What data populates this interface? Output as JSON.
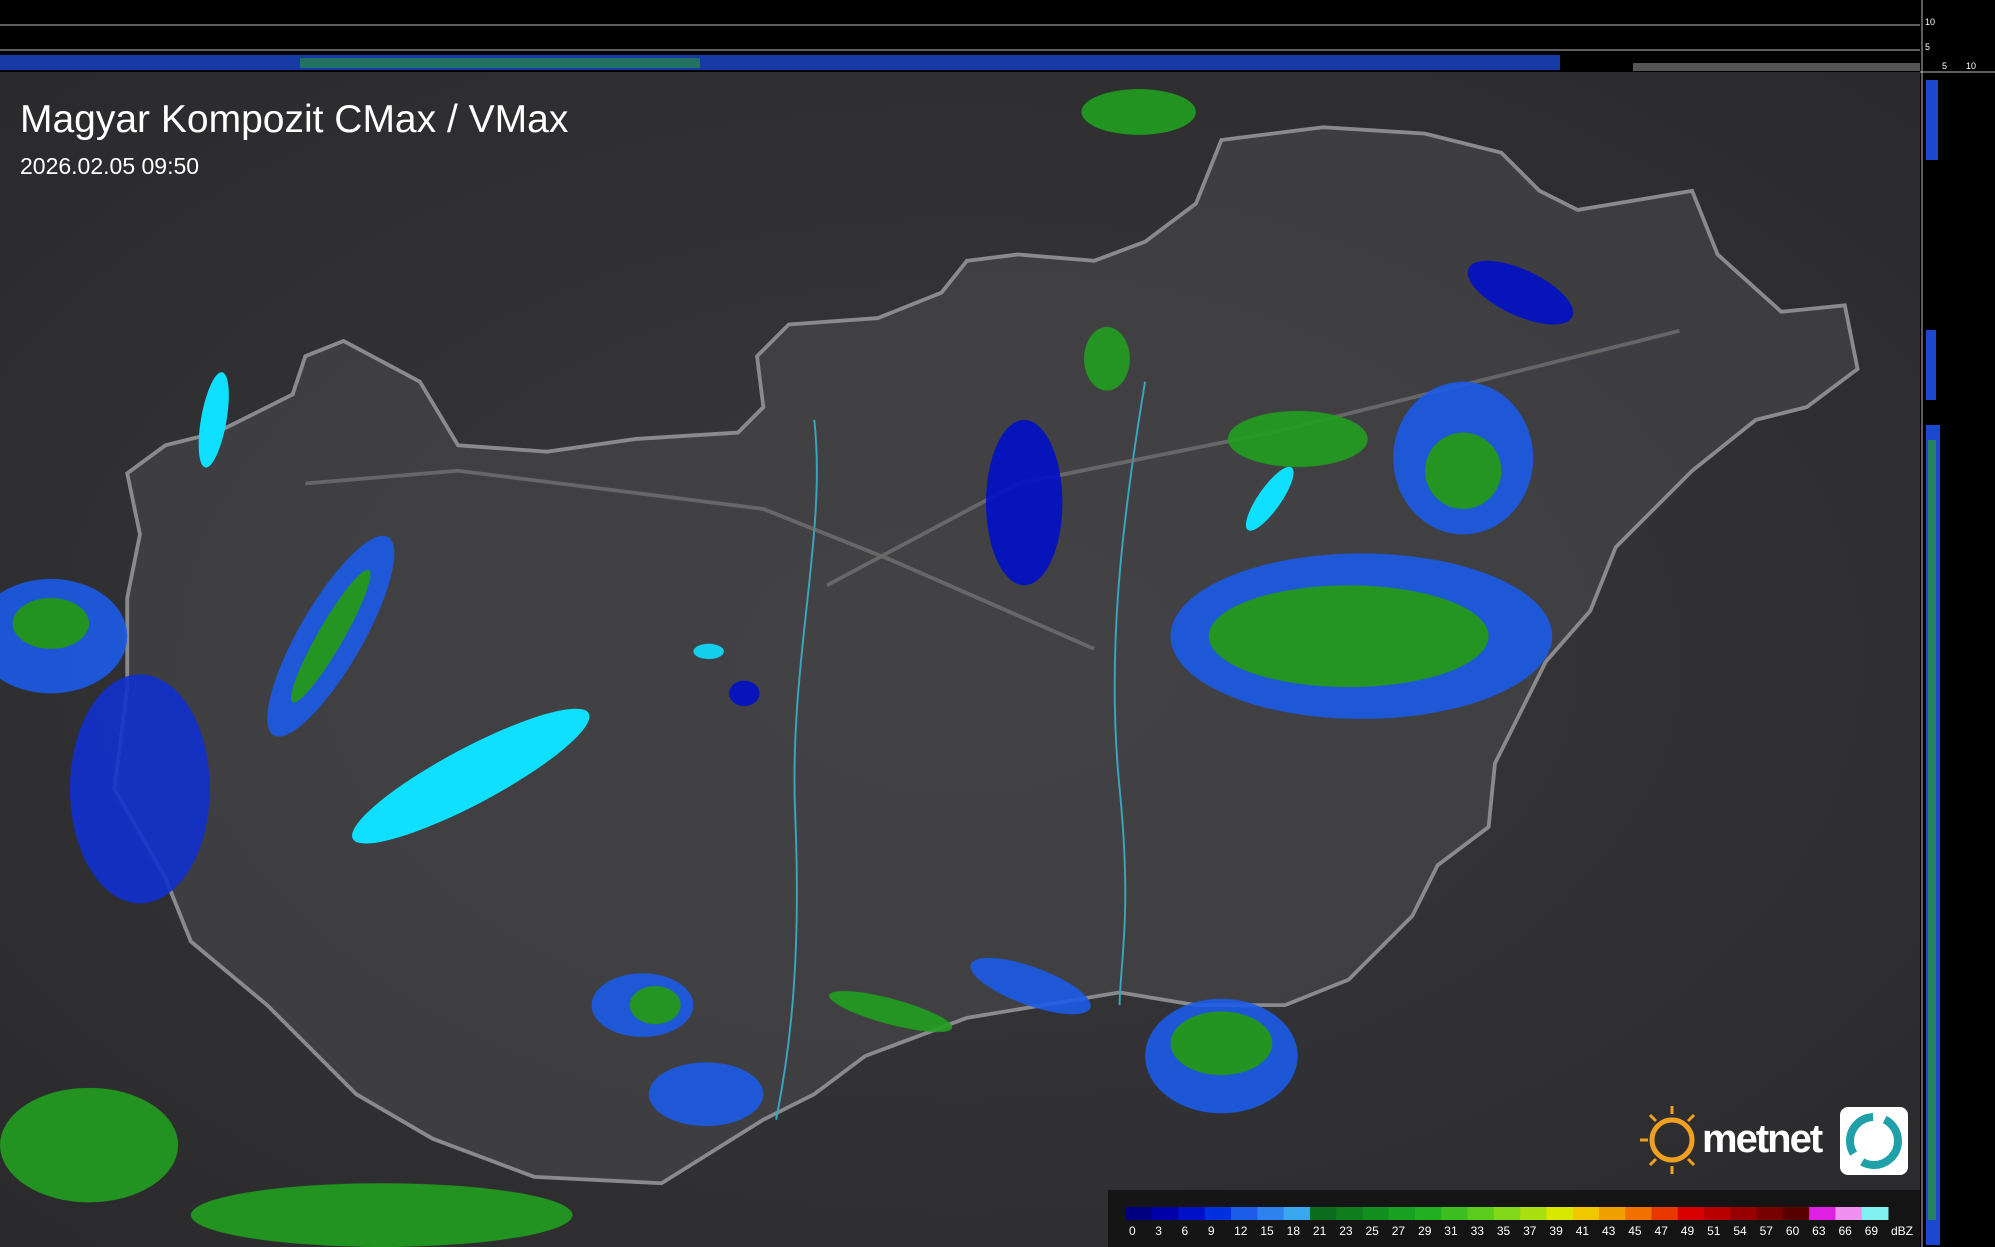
{
  "header": {
    "title": "Magyar Kompozit CMax / VMax",
    "timestamp": "2026.02.05 09:50"
  },
  "side_axis": {
    "top_labels": [
      "10",
      "5"
    ],
    "bottom_labels": [
      "5",
      "10"
    ]
  },
  "logo": {
    "text": "metnet"
  },
  "legend": {
    "unit": "dBZ",
    "levels": [
      0,
      3,
      6,
      9,
      12,
      15,
      18,
      21,
      23,
      25,
      27,
      29,
      31,
      33,
      35,
      37,
      39,
      41,
      43,
      45,
      47,
      49,
      51,
      54,
      57,
      60,
      63,
      66,
      69
    ],
    "colors": [
      "#000080",
      "#0000a8",
      "#0010c8",
      "#0030e0",
      "#1c5ce8",
      "#2e82f0",
      "#3aa8f0",
      "#0b6b1e",
      "#0f7d1e",
      "#138f20",
      "#18a020",
      "#22b022",
      "#3cbe20",
      "#5ccc1c",
      "#80d818",
      "#a8e010",
      "#d8e800",
      "#f0c800",
      "#f0a000",
      "#f07000",
      "#e83800",
      "#d80000",
      "#b80000",
      "#980000",
      "#780000",
      "#580000",
      "#e020e0",
      "#f090f0",
      "#80f0f0"
    ]
  }
}
